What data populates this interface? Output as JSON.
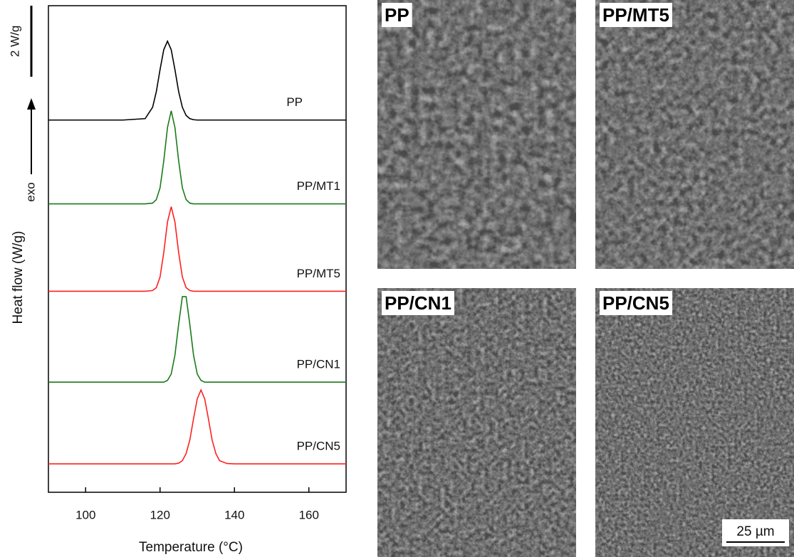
{
  "chart_data": {
    "type": "line",
    "x_label": "Temperature (°C)",
    "y_label": "Heat flow (W/g)",
    "exo_label": "exo",
    "scale_bar": {
      "value": 2,
      "label": "2 W/g"
    },
    "x": [
      90,
      110,
      116,
      118,
      119,
      120,
      121,
      122,
      123,
      124,
      125,
      126,
      127,
      128,
      129,
      130,
      131,
      132,
      133,
      134,
      135,
      136,
      138,
      140,
      170
    ],
    "xlim": [
      90,
      170
    ],
    "xticks": [
      100,
      120,
      140,
      160
    ],
    "ylim": [
      0,
      13.7
    ],
    "series": [
      {
        "name": "PP",
        "color": "#000000",
        "values": [
          10.48,
          10.48,
          10.52,
          10.84,
          11.28,
          11.9,
          12.46,
          12.7,
          12.46,
          11.9,
          11.28,
          10.84,
          10.61,
          10.52,
          10.49,
          10.48,
          10.48,
          10.48,
          10.48,
          10.48,
          10.48,
          10.48,
          10.48,
          10.48,
          10.48
        ]
      },
      {
        "name": "PP/MT1",
        "color": "#1a7a1a",
        "values": [
          8.12,
          8.12,
          8.12,
          8.14,
          8.24,
          8.57,
          9.33,
          10.27,
          10.74,
          10.27,
          9.33,
          8.57,
          8.24,
          8.14,
          8.12,
          8.12,
          8.12,
          8.12,
          8.12,
          8.12,
          8.12,
          8.12,
          8.12,
          8.12,
          8.12
        ]
      },
      {
        "name": "PP/MT5",
        "color": "#ff2020",
        "values": [
          5.66,
          5.66,
          5.66,
          5.68,
          5.76,
          6.06,
          6.75,
          7.61,
          8.04,
          7.61,
          6.75,
          6.06,
          5.76,
          5.68,
          5.66,
          5.66,
          5.66,
          5.66,
          5.66,
          5.66,
          5.66,
          5.66,
          5.66,
          5.66,
          5.66
        ]
      },
      {
        "name": "PP/CN1",
        "color": "#1a7a1a",
        "values": [
          3.1,
          3.1,
          3.1,
          3.1,
          3.1,
          3.1,
          3.1,
          3.15,
          3.33,
          3.86,
          4.73,
          5.51,
          5.51,
          4.73,
          3.86,
          3.33,
          3.15,
          3.1,
          3.1,
          3.1,
          3.1,
          3.1,
          3.1,
          3.1,
          3.1
        ]
      },
      {
        "name": "PP/CN5",
        "color": "#ff2020",
        "values": [
          0.8,
          0.8,
          0.8,
          0.8,
          0.8,
          0.8,
          0.8,
          0.8,
          0.8,
          0.8,
          0.82,
          0.89,
          1.09,
          1.47,
          2.07,
          2.63,
          2.88,
          2.63,
          2.07,
          1.47,
          1.09,
          0.89,
          0.81,
          0.8,
          0.8
        ]
      }
    ]
  },
  "micrographs": {
    "panels": [
      "PP",
      "PP/MT5",
      "PP/CN1",
      "PP/CN5"
    ],
    "scale_bar_label": "25 µm"
  }
}
